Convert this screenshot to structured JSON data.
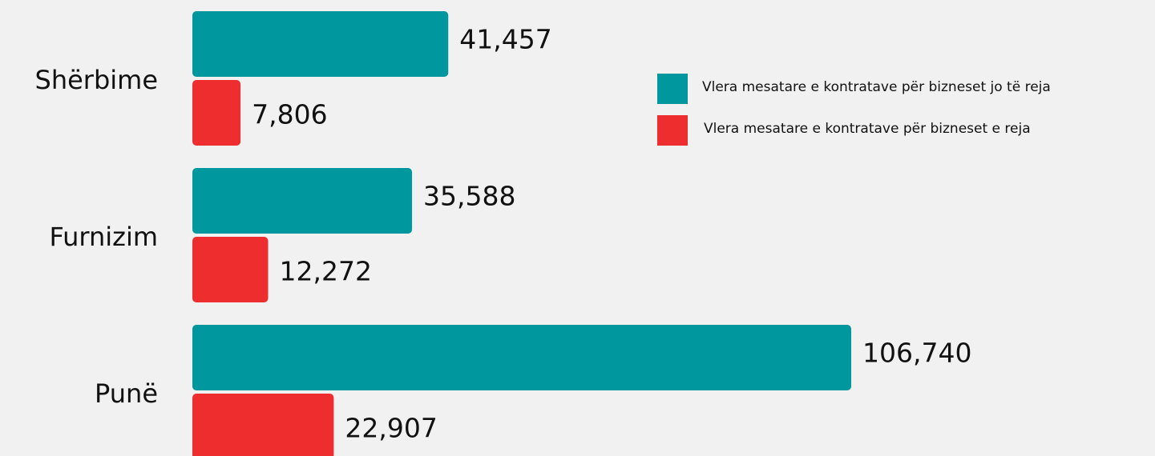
{
  "chart_data": {
    "type": "bar",
    "orientation": "horizontal",
    "categories": [
      "Shërbime",
      "Furnizim",
      "Punë"
    ],
    "series": [
      {
        "name": "Vlera mesatare e kontratave për bizneset jo të reja",
        "color": "#00979f",
        "values": [
          41457,
          35588,
          106740
        ],
        "value_labels": [
          "41,457",
          "35,588",
          "106,740"
        ]
      },
      {
        "name": "Vlera mesatare e kontratave për bizneset e reja",
        "color": "#ee2e2e",
        "values": [
          7806,
          12272,
          22907
        ],
        "value_labels": [
          "7,806",
          "12,272",
          "22,907"
        ]
      }
    ]
  }
}
